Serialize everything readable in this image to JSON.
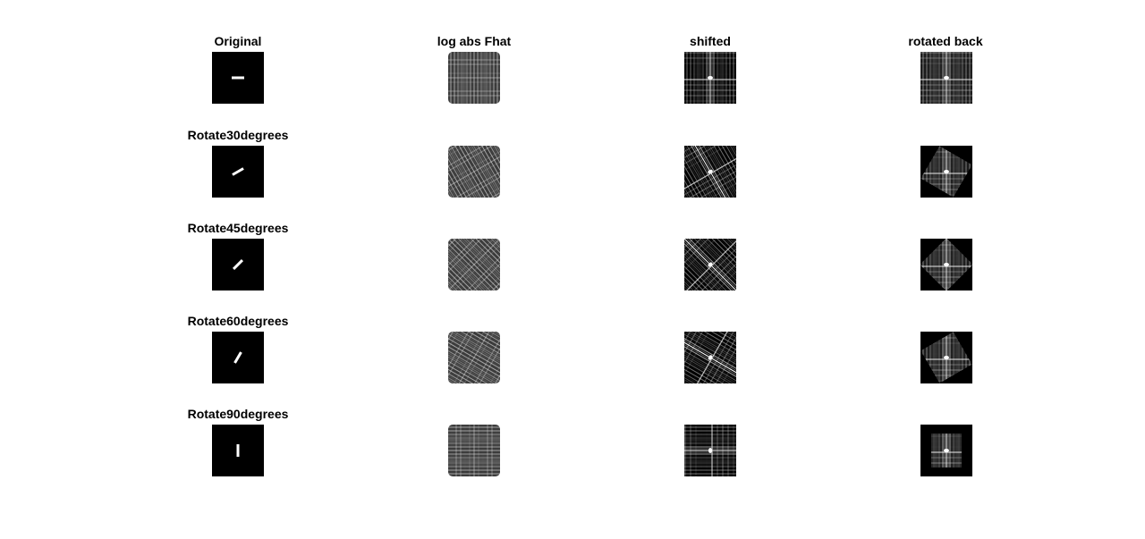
{
  "figure": {
    "columns": [
      {
        "key": "original",
        "title": "Original"
      },
      {
        "key": "fhat",
        "title": "log abs Fhat"
      },
      {
        "key": "shifted",
        "title": "shifted"
      },
      {
        "key": "rotback",
        "title": "rotated back"
      }
    ],
    "rows": [
      {
        "label": "",
        "angle": 0
      },
      {
        "label": "Rotate30degrees",
        "angle": 30
      },
      {
        "label": "Rotate45degrees",
        "angle": 45
      },
      {
        "label": "Rotate60degrees",
        "angle": 60
      },
      {
        "label": "Rotate90degrees",
        "angle": 90
      }
    ]
  }
}
